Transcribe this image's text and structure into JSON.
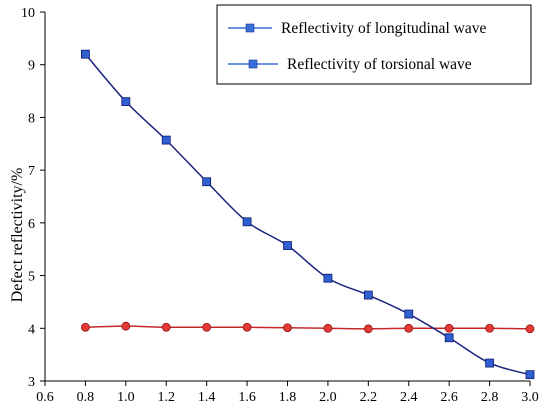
{
  "chart_data": {
    "type": "line",
    "title": "",
    "xlabel": "",
    "ylabel": "Defect reflectivity/%",
    "xlim": [
      0.6,
      3.0
    ],
    "ylim": [
      3,
      10
    ],
    "xticks": [
      "0.6",
      "0.8",
      "1.0",
      "1.2",
      "1.4",
      "1.6",
      "1.8",
      "2.0",
      "2.2",
      "2.4",
      "2.6",
      "2.8",
      "3.0"
    ],
    "yticks": [
      "3",
      "4",
      "5",
      "6",
      "7",
      "8",
      "9",
      "10"
    ],
    "grid": false,
    "legend_position": "top-right",
    "x": [
      0.8,
      1.0,
      1.2,
      1.4,
      1.6,
      1.8,
      2.0,
      2.2,
      2.4,
      2.6,
      2.8,
      3.0
    ],
    "series": [
      {
        "name": "Reflectivity of longitudinal wave",
        "values": [
          9.2,
          8.3,
          7.57,
          6.78,
          6.02,
          5.57,
          4.95,
          4.63,
          4.27,
          3.82,
          3.34,
          3.12
        ],
        "line_color": "#1a237e",
        "marker": "square",
        "marker_color": "#2f5fd0",
        "legend_color": "#3a6fd8"
      },
      {
        "name": "Reflectivity of torsional wave",
        "values": [
          4.02,
          4.04,
          4.02,
          4.02,
          4.02,
          4.01,
          4.0,
          3.99,
          4.0,
          4.0,
          4.0,
          3.99
        ],
        "line_color": "#c62828",
        "marker": "circle",
        "marker_color": "#e53935",
        "legend_color": "#3a6fd8"
      }
    ]
  }
}
